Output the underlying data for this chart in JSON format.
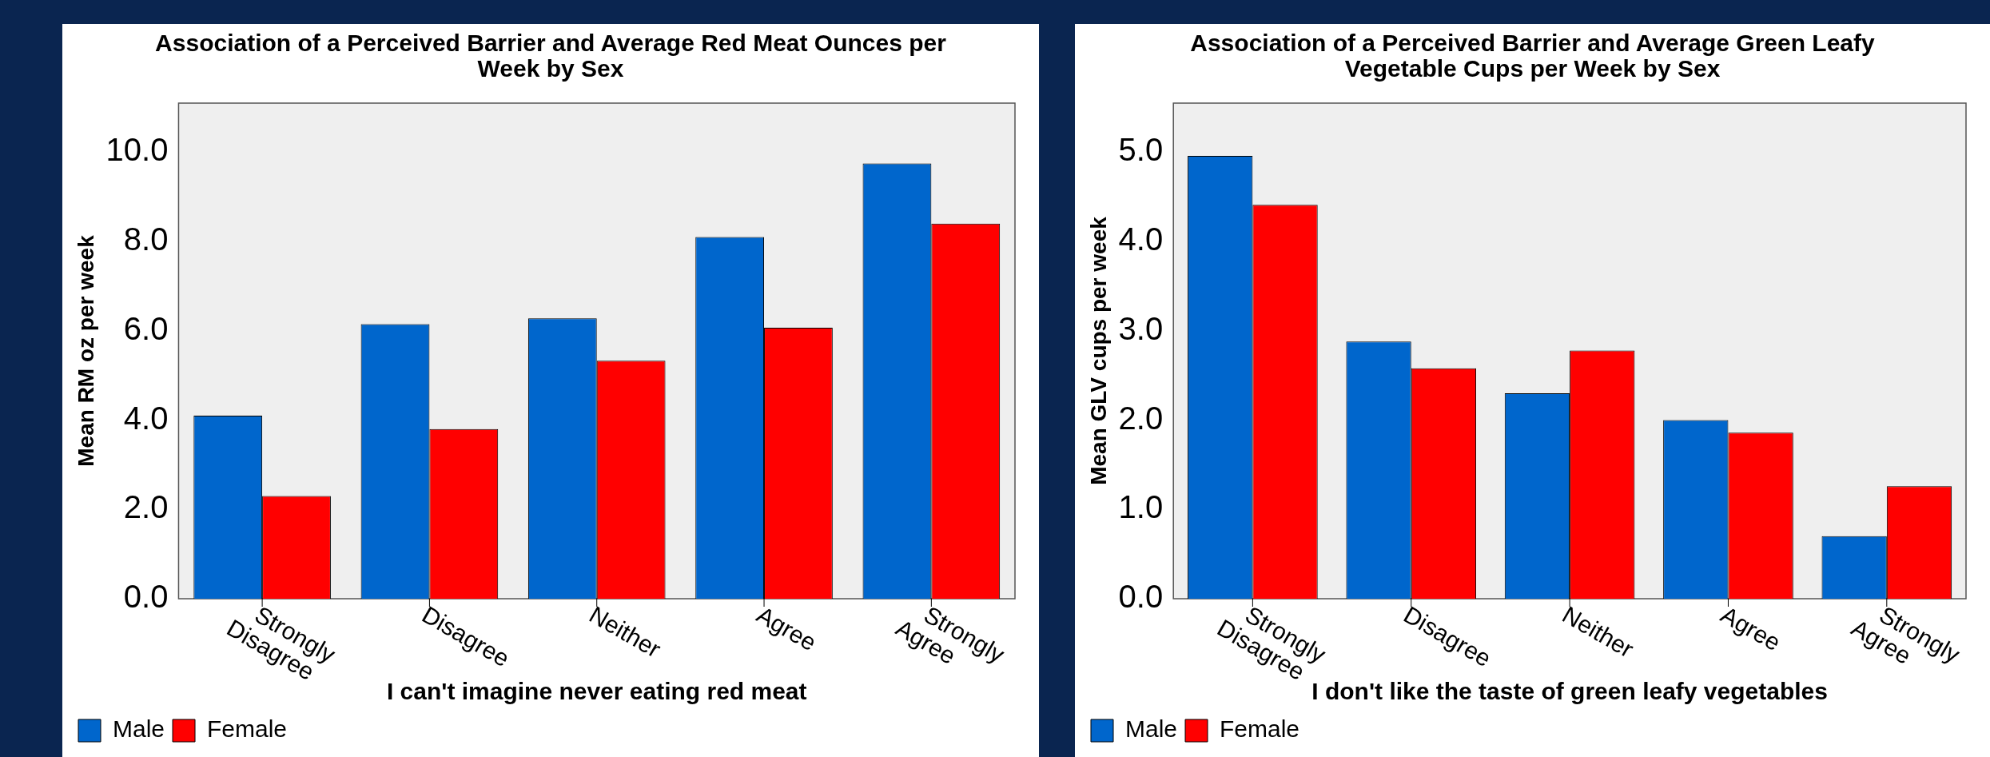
{
  "chart_data": [
    {
      "type": "bar",
      "title": "Association of a Perceived Barrier and Average Red Meat Ounces per Week by Sex",
      "xlabel": "I can't imagine never eating red meat",
      "ylabel": "Mean RM oz per week",
      "categories": [
        "Strongly Disagree",
        "Disagree",
        "Neither",
        "Agree",
        "Strongly Agree"
      ],
      "series": [
        {
          "name": "Male",
          "color": "#0066cc",
          "values": [
            4.1,
            6.15,
            6.28,
            8.1,
            9.75
          ]
        },
        {
          "name": "Female",
          "color": "#ff0000",
          "values": [
            2.3,
            3.8,
            5.33,
            6.07,
            8.4
          ]
        }
      ],
      "ylim": [
        0,
        11.1
      ],
      "yticks": [
        {
          "value": 0,
          "label": "0.0"
        },
        {
          "value": 2,
          "label": "2.0"
        },
        {
          "value": 4,
          "label": "4.0"
        },
        {
          "value": 6,
          "label": "6.0"
        },
        {
          "value": 8,
          "label": "8.0"
        },
        {
          "value": 10,
          "label": "10.0"
        }
      ],
      "grid": false,
      "legend": "bottom left"
    },
    {
      "type": "bar",
      "title": "Association of a Perceived Barrier and Average Green Leafy Vegetable Cups per Week by Sex",
      "xlabel": "I don't like the taste of green leafy vegetables",
      "ylabel": "Mean GLV cups per week",
      "categories": [
        "Strongly Disagree",
        "Disagree",
        "Neither",
        "Agree",
        "Strongly Agree"
      ],
      "series": [
        {
          "name": "Male",
          "color": "#0066cc",
          "values": [
            4.96,
            2.88,
            2.3,
            2.0,
            0.7
          ]
        },
        {
          "name": "Female",
          "color": "#ff0000",
          "values": [
            4.41,
            2.58,
            2.78,
            1.86,
            1.26
          ]
        }
      ],
      "ylim": [
        0,
        5.55
      ],
      "yticks": [
        {
          "value": 0,
          "label": "0.0"
        },
        {
          "value": 1,
          "label": "1.0"
        },
        {
          "value": 2,
          "label": "2.0"
        },
        {
          "value": 3,
          "label": "3.0"
        },
        {
          "value": 4,
          "label": "4.0"
        },
        {
          "value": 5,
          "label": "5.0"
        }
      ],
      "grid": false,
      "legend": "bottom left"
    }
  ]
}
